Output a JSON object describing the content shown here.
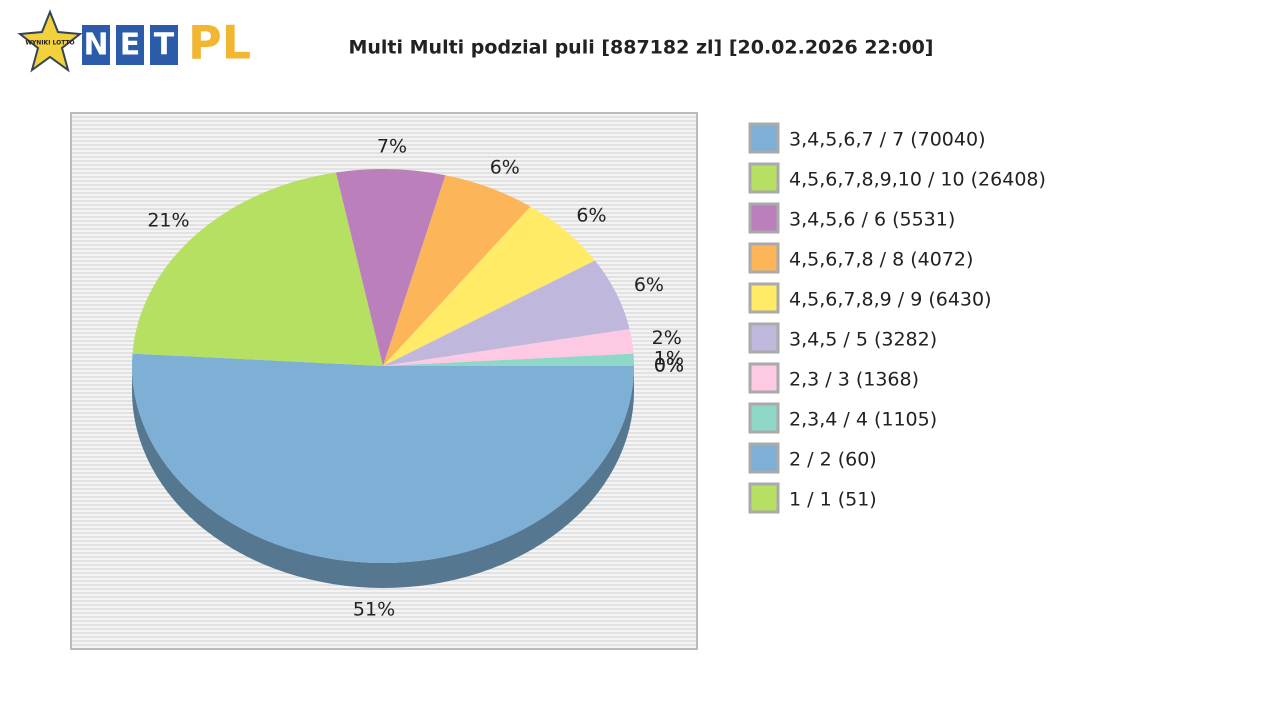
{
  "logo": {
    "badge": "WYNIKI LOTTO",
    "letters": [
      "N",
      "E",
      "T"
    ],
    "word": "PL"
  },
  "chart_data": {
    "type": "pie",
    "title": "Multi Multi podzial puli [887182 zl] [20.02.2026 22:00]",
    "categories": [
      "3,4,5,6,7 / 7 (70040)",
      "4,5,6,7,8,9,10 / 10 (26408)",
      "3,4,5,6 / 6 (5531)",
      "4,5,6,7,8 / 8 (4072)",
      "4,5,6,7,8,9 / 9 (6430)",
      "3,4,5 / 5 (3282)",
      "2,3 / 3 (1368)",
      "2,3,4 / 4 (1105)",
      "2 / 2 (60)",
      "1 / 1 (51)"
    ],
    "values": [
      51,
      21,
      7,
      6,
      6,
      6,
      2,
      1,
      0,
      0
    ],
    "value_labels": [
      "51%",
      "21%",
      "7%",
      "6%",
      "6%",
      "6%",
      "2%",
      "1%",
      "0%",
      "0%"
    ],
    "colors": [
      "#7eafd4",
      "#b5e061",
      "#bb7fbb",
      "#fdb55a",
      "#ffeb66",
      "#c0b8dc",
      "#fdc9e3",
      "#8fd8c8",
      "#7eafd4",
      "#b5e061"
    ],
    "legend": "right"
  }
}
